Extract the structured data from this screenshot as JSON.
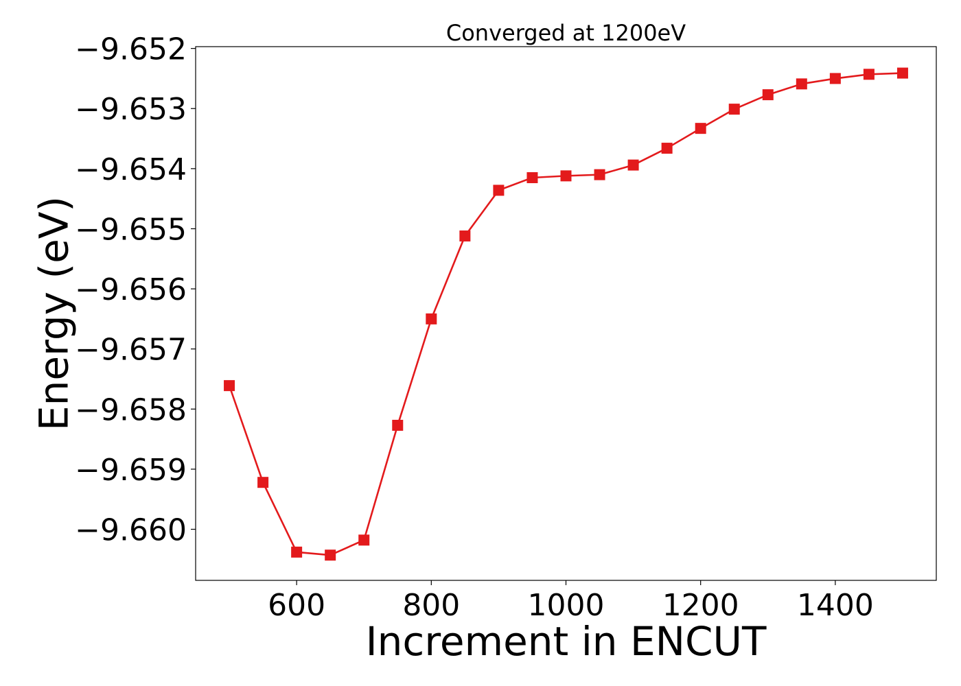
{
  "chart_data": {
    "type": "line",
    "title": "Converged at 1200eV",
    "xlabel": "Increment in ENCUT",
    "ylabel": "Energy (eV)",
    "xlim": [
      450,
      1550
    ],
    "ylim": [
      -9.66085,
      -9.65197
    ],
    "x_ticks": [
      600,
      800,
      1000,
      1200,
      1400
    ],
    "x_tick_labels": [
      "600",
      "800",
      "1000",
      "1200",
      "1400"
    ],
    "y_ticks": [
      -9.652,
      -9.653,
      -9.654,
      -9.655,
      -9.656,
      -9.657,
      -9.658,
      -9.659,
      -9.66
    ],
    "y_tick_labels": [
      "−9.652",
      "−9.653",
      "−9.654",
      "−9.655",
      "−9.656",
      "−9.657",
      "−9.658",
      "−9.659",
      "−9.660"
    ],
    "grid": false,
    "series": [
      {
        "color": "#e31a1c",
        "marker": "square",
        "x": [
          500,
          550,
          600,
          650,
          700,
          750,
          800,
          850,
          900,
          950,
          1000,
          1050,
          1100,
          1150,
          1200,
          1250,
          1300,
          1350,
          1400,
          1450,
          1500
        ],
        "y": [
          -9.65761,
          -9.65922,
          -9.66038,
          -9.66043,
          -9.66018,
          -9.65827,
          -9.6565,
          -9.65512,
          -9.65436,
          -9.65415,
          -9.65412,
          -9.6541,
          -9.65394,
          -9.65366,
          -9.65333,
          -9.65301,
          -9.65277,
          -9.65259,
          -9.6525,
          -9.65243,
          -9.65241
        ]
      }
    ]
  }
}
